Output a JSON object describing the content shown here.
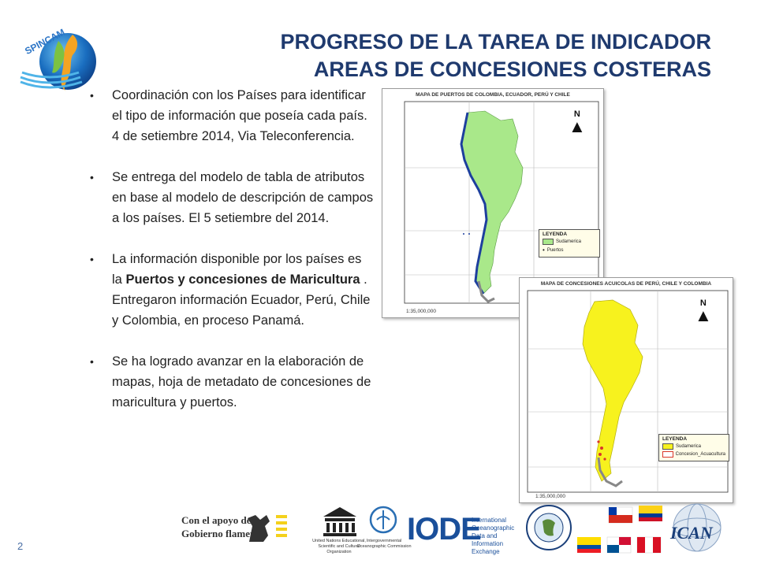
{
  "header": {
    "logo_text": "SPINCAM",
    "title_line1": "PROGRESO DE LA TAREA DE INDICADOR",
    "title_line2": "AREAS DE CONCESIONES COSTERAS"
  },
  "bullets": [
    {
      "text": "Coordinación con los Países para identificar el  tipo de información que poseía cada país. 4 de setiembre 2014,  Via Teleconferencia."
    },
    {
      "text": "Se entrega del modelo de tabla de atributos en base al modelo de descripción de campos a los países. El 5 setiembre del 2014."
    },
    {
      "pre": "La información  disponible por los países es la ",
      "bold": "Puertos y concesiones de Maricultura",
      "post": " .  Entregaron información Ecuador, Perú, Chile y Colombia, en proceso Panamá."
    },
    {
      "text": "Se ha logrado avanzar en la elaboración de mapas, hoja de metadato  de concesiones de maricultura y puertos."
    }
  ],
  "map1": {
    "title": "MAPA DE PUERTOS DE COLOMBIA, ECUADOR, PERÚ Y CHILE",
    "north": "N",
    "legend_title": "LEYENDA",
    "legend_items": [
      "Sudamerica",
      "Puertos"
    ],
    "scale": "1:35,000,000",
    "land_color": "#a9e88a",
    "coast_color": "#1d3f9e"
  },
  "map2": {
    "title": "MAPA DE CONCESIONES ACUICOLAS DE PERÚ, CHILE Y COLOMBIA",
    "north": "N",
    "legend_title": "LEYENDA",
    "legend_items": [
      "Sudamerica",
      "Concesion_Acuacultura"
    ],
    "scale": "1:35,000,000",
    "land_color": "#f7f21e",
    "mark_color": "#d9362b"
  },
  "footer": {
    "support_line1": "Con el apoyo del",
    "support_line2": "Gobierno flamenco",
    "unesco_caption": "United Nations Educational, Scientific and Cultural Organization",
    "ioc_caption": "Intergovernmental Oceanographic Commission",
    "iode_word": "IODE",
    "iode_caption": "International Oceanographic Data and Information Exchange",
    "ican_word": "ICAN"
  },
  "page_number": "2"
}
